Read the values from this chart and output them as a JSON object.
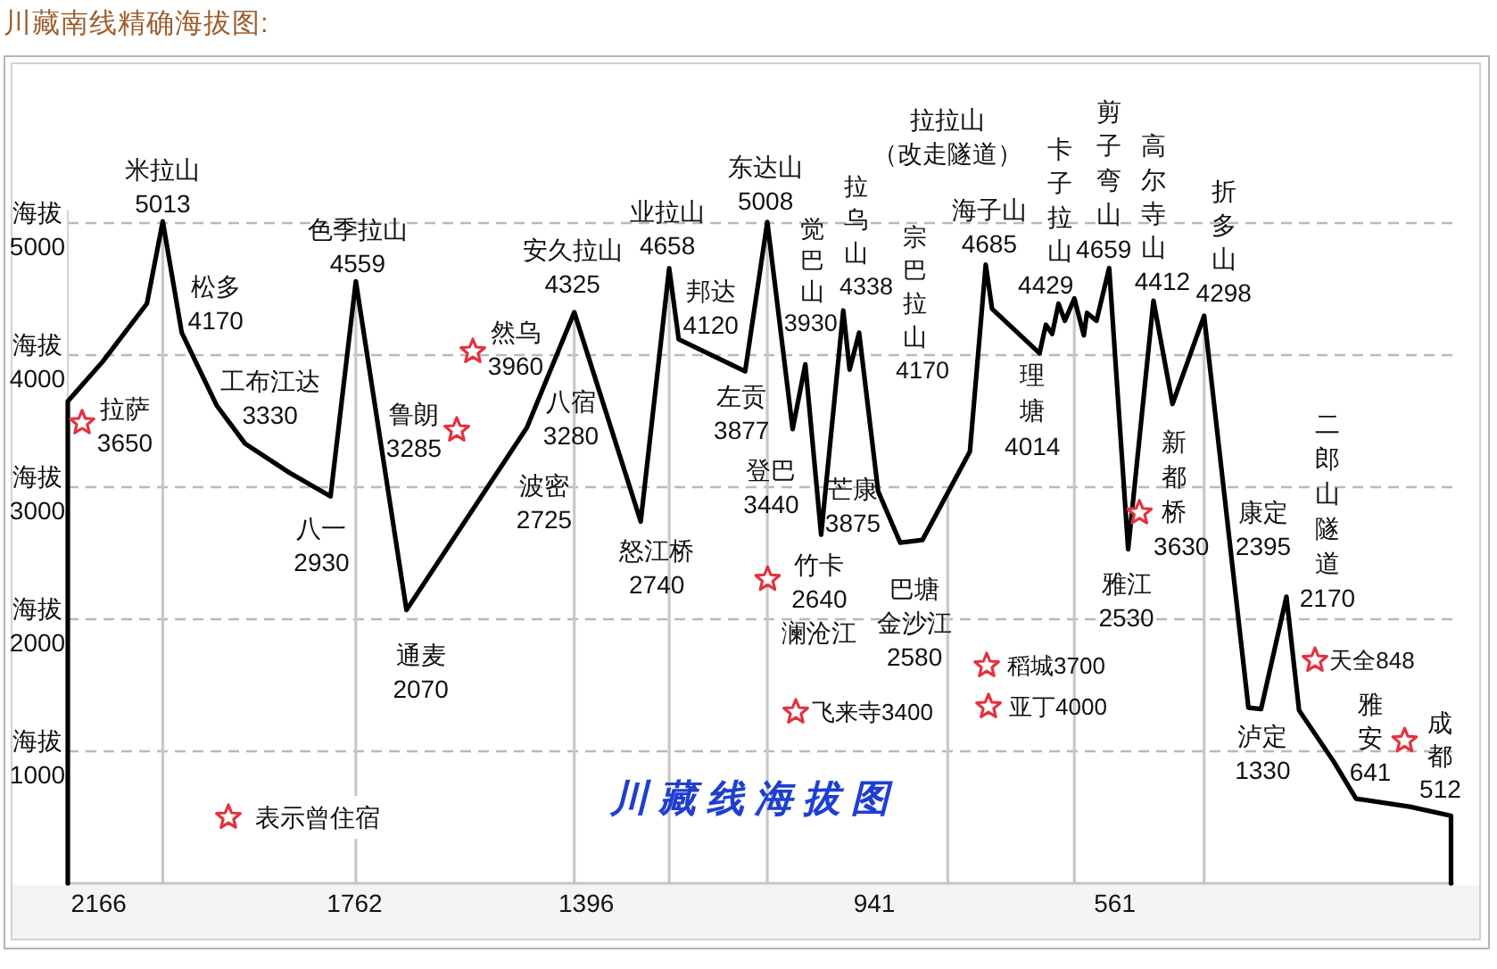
{
  "chart_data": {
    "type": "line",
    "title": "川藏南线精确海拔图:",
    "ylabel": "海拔",
    "x": [
      2215,
      2215,
      2160,
      2090,
      2065,
      2035,
      1980,
      1935,
      1865,
      1800,
      1760,
      1680,
      1490,
      1415,
      1310,
      1265,
      1250,
      1145,
      1110,
      1070,
      1050,
      1025,
      990,
      980,
      965,
      935,
      900,
      865,
      790,
      765,
      755,
      680,
      670,
      660,
      650,
      640,
      625,
      610,
      605,
      590,
      585,
      570,
      540,
      500,
      470,
      420,
      350,
      330,
      290,
      270,
      215,
      180,
      95,
      30,
      30
    ],
    "values": [
      0,
      3650,
      3950,
      4390,
      5013,
      4170,
      3620,
      3330,
      3110,
      2930,
      4559,
      2070,
      3450,
      4325,
      2740,
      4658,
      4120,
      3877,
      5008,
      3440,
      3930,
      2640,
      4338,
      3890,
      4170,
      2970,
      2580,
      2600,
      3270,
      4685,
      4350,
      4014,
      4230,
      4160,
      4390,
      4260,
      4429,
      4150,
      4320,
      4260,
      4360,
      4659,
      2530,
      4412,
      3630,
      4298,
      1330,
      1320,
      2170,
      1310,
      920,
      641,
      580,
      512,
      0
    ],
    "color": "#000000",
    "xlim": [
      2215,
      25
    ],
    "xticks": [
      2166,
      1762,
      1396,
      941,
      561
    ],
    "ylim": [
      0,
      5100
    ],
    "yticks": [
      1000,
      2000,
      3000,
      4000,
      5000
    ],
    "grid": "y",
    "ref_lines": [
      {
        "axis": "x",
        "value": 2065,
        "color": "#c8c8c8"
      },
      {
        "axis": "x",
        "value": 1760,
        "color": "#c8c8c8"
      },
      {
        "axis": "x",
        "value": 1415,
        "color": "#c8c8c8"
      },
      {
        "axis": "x",
        "value": 1265,
        "color": "#c8c8c8"
      },
      {
        "axis": "x",
        "value": 1110,
        "color": "#c8c8c8"
      },
      {
        "axis": "x",
        "value": 825,
        "color": "#c8c8c8"
      },
      {
        "axis": "x",
        "value": 625,
        "color": "#c8c8c8"
      },
      {
        "axis": "x",
        "value": 420,
        "color": "#c8c8c8"
      }
    ],
    "annotations": [
      {
        "text": "米拉山 5013",
        "x": 2065,
        "y": 5013
      },
      {
        "text": "拉萨 3650",
        "x": 2215,
        "y": 3650
      },
      {
        "text": "松多 4170",
        "x": 2035,
        "y": 4170
      },
      {
        "text": "工布江达 3330",
        "x": 1935,
        "y": 3330
      },
      {
        "text": "八一 2930",
        "x": 1800,
        "y": 2930
      },
      {
        "text": "色季拉山 4559",
        "x": 1760,
        "y": 4559
      },
      "鲁朗 3285",
      {
        "text": "通麦 2070",
        "x": 1680,
        "y": 2070
      },
      "然乌 3960",
      "波密 2725",
      {
        "text": "安久拉山 4325",
        "x": 1415,
        "y": 4325
      },
      "八宿 3280",
      {
        "text": "怒江桥 2740",
        "x": 1310,
        "y": 2740
      },
      {
        "text": "业拉山 4658",
        "x": 1265,
        "y": 4658
      },
      {
        "text": "邦达 4120",
        "x": 1250,
        "y": 4120
      },
      {
        "text": "左贡 3877",
        "x": 1145,
        "y": 3877
      },
      {
        "text": "东达山 5008",
        "x": 1110,
        "y": 5008
      },
      {
        "text": "觉巴山 3930",
        "x": 1050,
        "y": 3930
      },
      {
        "text": "登巴 3440",
        "x": 1070,
        "y": 3440
      },
      {
        "text": "拉乌山 4338",
        "x": 990,
        "y": 4338
      },
      {
        "text": "宗巴拉山 4170",
        "x": 965,
        "y": 4170
      },
      "芒康 3875",
      {
        "text": "竹卡 2640 澜沧江",
        "x": 1025,
        "y": 2640
      },
      {
        "text": "巴塘金沙江 2580",
        "x": 900,
        "y": 2580
      },
      "拉拉山（改走隧道）",
      {
        "text": "海子山 4685",
        "x": 765,
        "y": 4685
      },
      {
        "text": "理塘 4014",
        "x": 680,
        "y": 4014
      },
      {
        "text": "卡子拉山 4429",
        "x": 625,
        "y": 4429
      },
      {
        "text": "剪子弯山 4659",
        "x": 570,
        "y": 4659
      },
      {
        "text": "高尔寺山 4412",
        "x": 500,
        "y": 4412
      },
      {
        "text": "折多山 4298",
        "x": 420,
        "y": 4298
      },
      {
        "text": "新都桥 3630",
        "x": 470,
        "y": 3630
      },
      {
        "text": "雅江 2530",
        "x": 540,
        "y": 2530
      },
      "康定 2395",
      {
        "text": "二郎山隧道 2170",
        "x": 290,
        "y": 2170
      },
      {
        "text": "泸定 1330",
        "x": 350,
        "y": 1330
      },
      {
        "text": "雅安 641",
        "x": 180,
        "y": 641
      },
      {
        "text": "成都 512",
        "x": 30,
        "y": 512
      },
      "稻城3700",
      "亚丁4000",
      "飞来寺3400",
      "天全848",
      "表示曾住宿",
      "川藏线海拔图"
    ]
  }
}
